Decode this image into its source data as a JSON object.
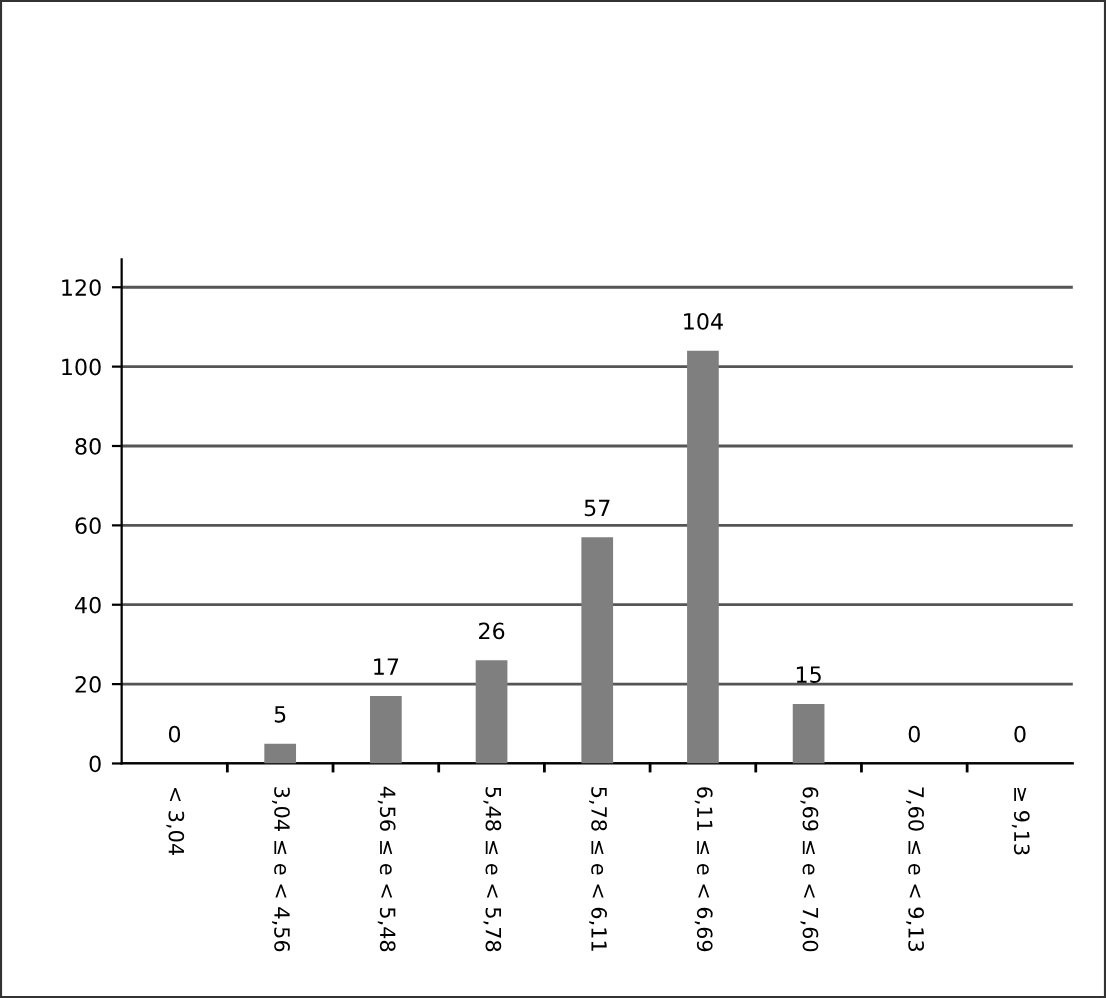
{
  "chart_data": {
    "type": "bar",
    "categories": [
      "< 3,04",
      "3,04 ≤ e < 4,56",
      "4,56 ≤ e < 5,48",
      "5,48 ≤ e < 5,78",
      "5,78 ≤ e < 6,11",
      "6,11 ≤ e < 6,69",
      "6,69 ≤ e < 7,60",
      "7,60 ≤ e < 9,13",
      "≥ 9,13"
    ],
    "values": [
      0,
      5,
      17,
      26,
      57,
      104,
      15,
      0,
      0
    ],
    "color": "#7f7f7f",
    "ylim": [
      0,
      127
    ],
    "yticks": [
      0,
      20,
      40,
      60,
      80,
      100,
      120
    ],
    "grid": "y",
    "data_labels": true
  }
}
